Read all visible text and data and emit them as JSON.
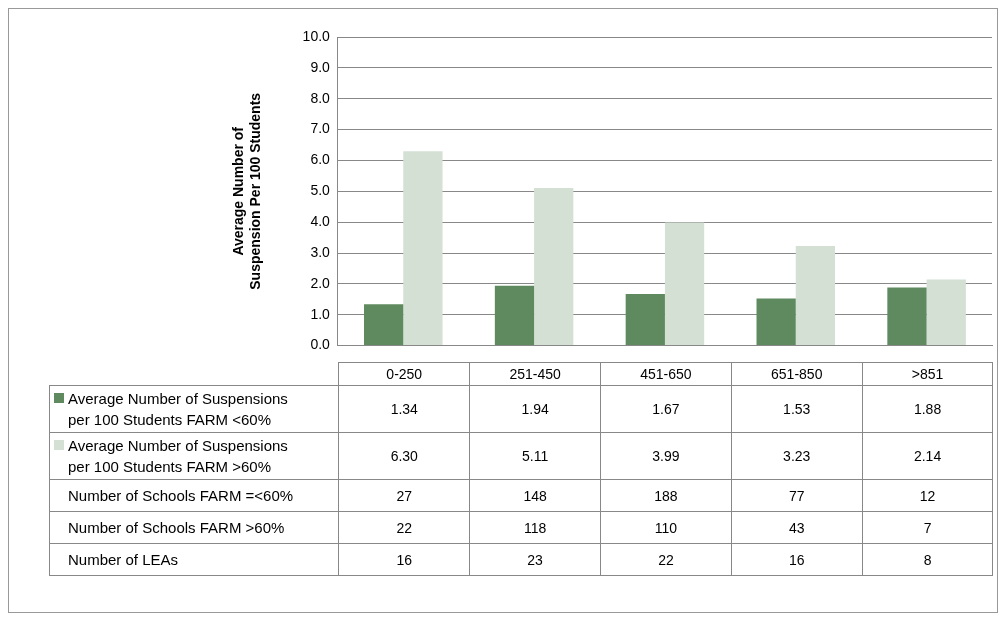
{
  "chart_data": {
    "type": "bar",
    "ylabel": "Average Number of\nSuspension Per 100 Students",
    "categories": [
      "0-250",
      "251-450",
      "451-650",
      "651-850",
      ">851"
    ],
    "series": [
      {
        "name": "Average Number of Suspensions per 100 Students FARM <60%",
        "color": "#5f8a5f",
        "values": [
          1.34,
          1.94,
          1.67,
          1.53,
          1.88
        ],
        "value_labels": [
          "1.34",
          "1.94",
          "1.67",
          "1.53",
          "1.88"
        ]
      },
      {
        "name": "Average Number of Suspensions per 100 Students FARM >60%",
        "color": "#d3e0d3",
        "values": [
          6.3,
          5.11,
          3.99,
          3.23,
          2.14
        ],
        "value_labels": [
          "6.30",
          "5.11",
          "3.99",
          "3.23",
          "2.14"
        ]
      },
      {
        "name": "Number of Schools FARM =<60%",
        "type": "other",
        "values": [
          null,
          null,
          null,
          null,
          null
        ],
        "value_labels": [
          "27",
          "148",
          "188",
          "77",
          "12"
        ]
      },
      {
        "name": "Number of Schools FARM >60%",
        "type": "other",
        "values": [
          null,
          null,
          null,
          null,
          null
        ],
        "value_labels": [
          "22",
          "118",
          "110",
          "43",
          "7"
        ]
      },
      {
        "name": "Number of LEAs",
        "type": "other",
        "values": [
          null,
          null,
          null,
          null,
          null
        ],
        "value_labels": [
          "16",
          "23",
          "22",
          "16",
          "8"
        ]
      }
    ],
    "ylim": [
      0,
      10
    ],
    "yticks": [
      {
        "value": 0,
        "label": "0.0"
      },
      {
        "value": 1,
        "label": "1.0"
      },
      {
        "value": 2,
        "label": "2.0"
      },
      {
        "value": 3,
        "label": "3.0"
      },
      {
        "value": 4,
        "label": "4.0"
      },
      {
        "value": 5,
        "label": "5.0"
      },
      {
        "value": 6,
        "label": "6.0"
      },
      {
        "value": 7,
        "label": "7.0"
      },
      {
        "value": 8,
        "label": "8.0"
      },
      {
        "value": 9,
        "label": "9.0"
      },
      {
        "value": 10,
        "label": "10.0"
      }
    ],
    "grid": "y",
    "legend": "bottom"
  }
}
